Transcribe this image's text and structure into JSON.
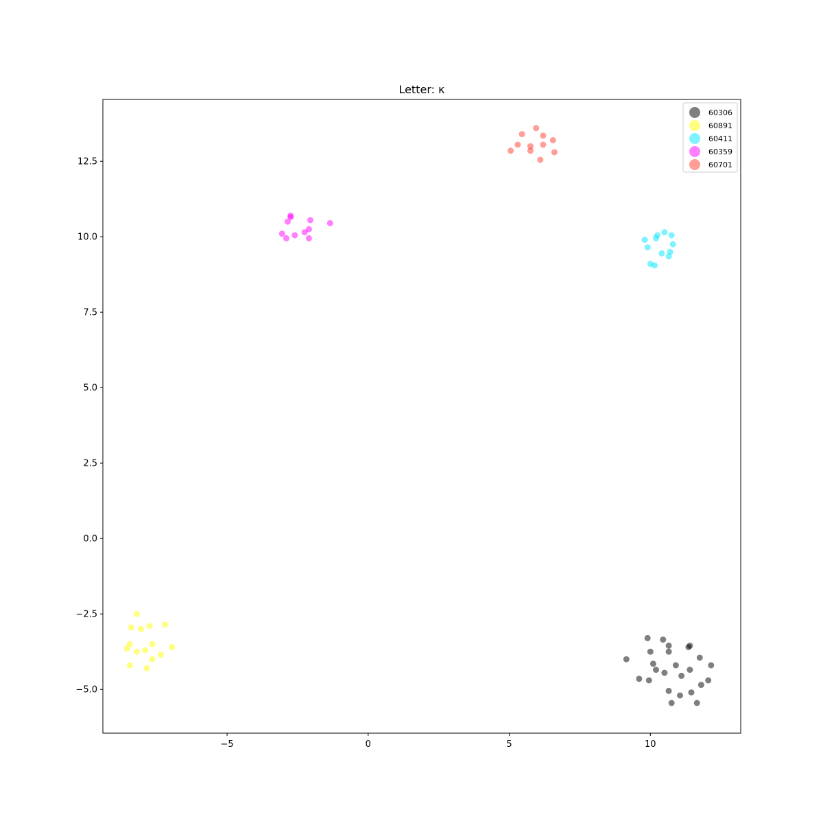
{
  "chart_data": {
    "type": "scatter",
    "title": "Letter: κ",
    "xlabel": "",
    "ylabel": "",
    "xlim": [
      -9.4,
      13.2
    ],
    "ylim": [
      -6.45,
      14.55
    ],
    "xticks": [
      -5,
      0,
      5,
      10
    ],
    "xtick_labels": [
      "−5",
      "0",
      "5",
      "10"
    ],
    "yticks": [
      -5.0,
      -2.5,
      0.0,
      2.5,
      5.0,
      7.5,
      10.0,
      12.5
    ],
    "ytick_labels": [
      "−5.0",
      "−2.5",
      "0.0",
      "2.5",
      "5.0",
      "7.5",
      "10.0",
      "12.5"
    ],
    "grid": false,
    "legend_position": "top-right",
    "series": [
      {
        "name": "60306",
        "color": "#000000",
        "points": [
          [
            9.9,
            -3.3
          ],
          [
            10.45,
            -3.35
          ],
          [
            10.65,
            -3.55
          ],
          [
            11.4,
            -3.55
          ],
          [
            11.35,
            -3.6
          ],
          [
            10.0,
            -3.75
          ],
          [
            10.65,
            -3.75
          ],
          [
            11.75,
            -3.95
          ],
          [
            9.15,
            -4.0
          ],
          [
            10.1,
            -4.15
          ],
          [
            10.9,
            -4.2
          ],
          [
            12.15,
            -4.2
          ],
          [
            10.2,
            -4.35
          ],
          [
            11.4,
            -4.35
          ],
          [
            10.5,
            -4.45
          ],
          [
            11.1,
            -4.55
          ],
          [
            9.6,
            -4.65
          ],
          [
            9.95,
            -4.7
          ],
          [
            12.05,
            -4.7
          ],
          [
            11.8,
            -4.85
          ],
          [
            10.65,
            -5.05
          ],
          [
            11.45,
            -5.1
          ],
          [
            11.05,
            -5.2
          ],
          [
            10.75,
            -5.45
          ],
          [
            11.65,
            -5.45
          ]
        ]
      },
      {
        "name": "60891",
        "color": "#ffff00",
        "points": [
          [
            -8.2,
            -2.5
          ],
          [
            -7.2,
            -2.85
          ],
          [
            -8.4,
            -2.95
          ],
          [
            -7.75,
            -2.9
          ],
          [
            -8.05,
            -3.0
          ],
          [
            -8.45,
            -3.5
          ],
          [
            -7.65,
            -3.5
          ],
          [
            -6.95,
            -3.6
          ],
          [
            -8.55,
            -3.65
          ],
          [
            -7.9,
            -3.7
          ],
          [
            -8.2,
            -3.75
          ],
          [
            -7.35,
            -3.85
          ],
          [
            -7.65,
            -4.0
          ],
          [
            -8.45,
            -4.2
          ],
          [
            -7.85,
            -4.3
          ]
        ]
      },
      {
        "name": "60411",
        "color": "#00e5ff",
        "points": [
          [
            10.5,
            10.15
          ],
          [
            10.25,
            10.05
          ],
          [
            10.75,
            10.05
          ],
          [
            10.2,
            9.95
          ],
          [
            9.8,
            9.9
          ],
          [
            10.8,
            9.75
          ],
          [
            9.9,
            9.65
          ],
          [
            10.7,
            9.5
          ],
          [
            10.4,
            9.45
          ],
          [
            10.65,
            9.35
          ],
          [
            10.0,
            9.1
          ],
          [
            10.15,
            9.05
          ]
        ]
      },
      {
        "name": "60359",
        "color": "#ff00ff",
        "points": [
          [
            -2.75,
            10.7
          ],
          [
            -2.75,
            10.65
          ],
          [
            -2.85,
            10.5
          ],
          [
            -2.05,
            10.55
          ],
          [
            -1.35,
            10.45
          ],
          [
            -2.1,
            10.25
          ],
          [
            -2.25,
            10.15
          ],
          [
            -3.05,
            10.1
          ],
          [
            -2.6,
            10.05
          ],
          [
            -2.9,
            9.95
          ],
          [
            -2.1,
            9.95
          ]
        ]
      },
      {
        "name": "60701",
        "color": "#ff3b30",
        "points": [
          [
            5.95,
            13.6
          ],
          [
            5.45,
            13.4
          ],
          [
            6.2,
            13.35
          ],
          [
            6.55,
            13.2
          ],
          [
            5.3,
            13.05
          ],
          [
            6.2,
            13.05
          ],
          [
            5.75,
            13.0
          ],
          [
            5.05,
            12.85
          ],
          [
            5.75,
            12.85
          ],
          [
            6.6,
            12.8
          ],
          [
            6.1,
            12.55
          ]
        ]
      }
    ]
  }
}
